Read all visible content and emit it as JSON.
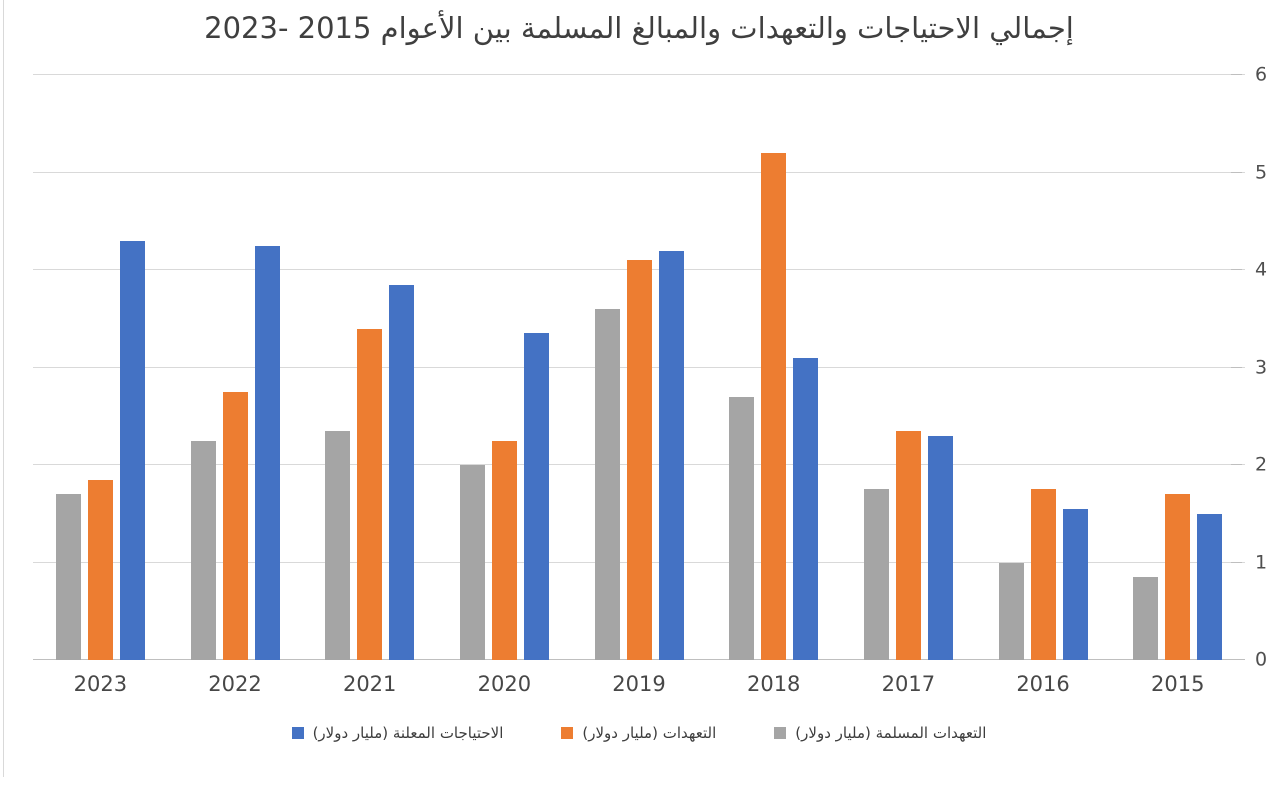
{
  "page": {
    "background": "#ffffff",
    "edge_line_color": "#d9d9d9"
  },
  "chart_data": {
    "type": "bar",
    "direction": "rtl",
    "title": "إجمالي الاحتياجات والتعهدات والمبالغ المسلمة بين الأعوام 2015 -2023",
    "categories": [
      "2023",
      "2022",
      "2021",
      "2020",
      "2019",
      "2018",
      "2017",
      "2016",
      "2015"
    ],
    "series": [
      {
        "key": "announced-needs",
        "name": "الاحتياجات المعلنة (مليار دولار)",
        "color": "#4472C4",
        "values": [
          4.3,
          4.25,
          3.85,
          3.35,
          4.2,
          3.1,
          2.3,
          1.55,
          1.5
        ]
      },
      {
        "key": "pledges",
        "name": "التعهدات (مليار دولار)",
        "color": "#ED7D31",
        "values": [
          1.85,
          2.75,
          3.4,
          2.25,
          4.1,
          5.2,
          2.35,
          1.75,
          1.7
        ]
      },
      {
        "key": "delivered-pledges",
        "name": "التعهدات المسلمة (مليار دولار)",
        "color": "#A5A5A5",
        "values": [
          1.7,
          2.25,
          2.35,
          2.0,
          3.6,
          2.7,
          1.75,
          1.0,
          0.85
        ]
      }
    ],
    "xlabel": "",
    "ylabel": "",
    "ylim": [
      0,
      6
    ],
    "yticks": [
      "0",
      "1",
      "2",
      "3",
      "4",
      "5",
      "6"
    ],
    "axis_side": "right",
    "legend_position": "bottom",
    "grid": true,
    "group_order_note": "within each year group bars run gray, orange, blue from left to right",
    "colors": {
      "gridline": "#d9d9d9",
      "baseline": "#bfbfbf",
      "tick": "#bfbfbf",
      "axis_label": "#4f4f4f",
      "title": "#3f3f3f",
      "legend_text": "#3d3d3d"
    }
  }
}
